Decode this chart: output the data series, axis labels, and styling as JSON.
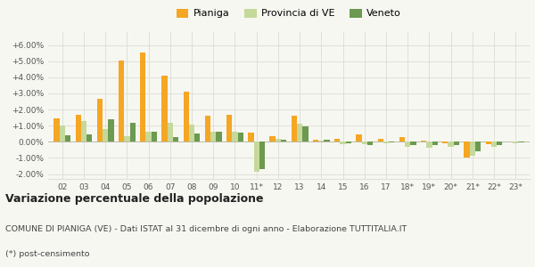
{
  "years": [
    "02",
    "03",
    "04",
    "05",
    "06",
    "07",
    "08",
    "09",
    "10",
    "11*",
    "12",
    "13",
    "14",
    "15",
    "16",
    "17",
    "18*",
    "19*",
    "20*",
    "21*",
    "22*",
    "23*"
  ],
  "pianiga": [
    1.45,
    1.65,
    2.65,
    5.05,
    5.55,
    4.1,
    3.1,
    1.6,
    1.65,
    0.55,
    0.35,
    1.6,
    0.15,
    0.2,
    0.45,
    0.2,
    0.3,
    0.05,
    -0.1,
    -1.0,
    -0.15,
    0.0
  ],
  "provincia_ve": [
    1.0,
    1.3,
    0.8,
    0.35,
    0.65,
    1.2,
    1.05,
    0.65,
    0.6,
    -1.85,
    0.2,
    1.1,
    0.05,
    -0.15,
    -0.15,
    -0.1,
    -0.3,
    -0.35,
    -0.3,
    -0.85,
    -0.3,
    -0.1
  ],
  "veneto": [
    0.4,
    0.45,
    1.4,
    1.2,
    0.65,
    0.3,
    0.5,
    0.6,
    0.55,
    -1.7,
    0.15,
    0.95,
    0.1,
    -0.1,
    -0.2,
    -0.05,
    -0.2,
    -0.2,
    -0.2,
    -0.6,
    -0.2,
    -0.05
  ],
  "color_pianiga": "#f5a623",
  "color_provincia": "#c5d99a",
  "color_veneto": "#6b9a50",
  "bg_color": "#f7f7f2",
  "grid_color": "#e0e0d8",
  "ylim": [
    -2.3,
    6.8
  ],
  "yticks": [
    -2.0,
    -1.0,
    0.0,
    1.0,
    2.0,
    3.0,
    4.0,
    5.0,
    6.0
  ],
  "title_main": "Variazione percentuale della popolazione",
  "title_sub1": "COMUNE DI PIANIGA (VE) - Dati ISTAT al 31 dicembre di ogni anno - Elaborazione TUTTITALIA.IT",
  "title_sub2": "(*) post-censimento",
  "legend_labels": [
    "Pianiga",
    "Provincia di VE",
    "Veneto"
  ]
}
